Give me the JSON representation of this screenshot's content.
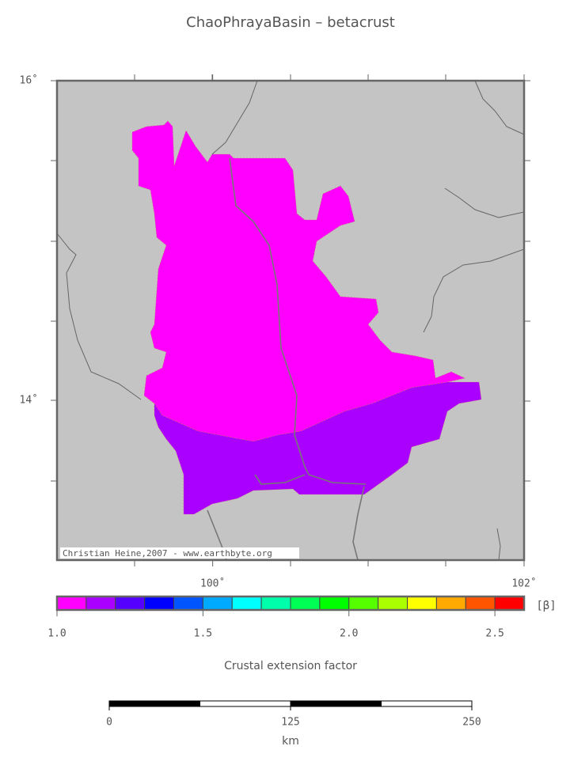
{
  "title": "ChaoPhrayaBasin – betacrust",
  "map": {
    "xlim": [
      99,
      102
    ],
    "ylim": [
      13,
      16
    ],
    "xticks": [
      {
        "value": 100,
        "label": "100˚"
      },
      {
        "value": 102,
        "label": "102˚"
      }
    ],
    "yticks": [
      {
        "value": 14,
        "label": "14˚"
      },
      {
        "value": 16,
        "label": "16˚"
      }
    ],
    "credit": "Christian Heine,2007 - www.earthbyte.org",
    "background": "#c4c4c4"
  },
  "colorbar": {
    "range": [
      1.0,
      2.6
    ],
    "colors": [
      "#ff00ff",
      "#aa00ff",
      "#5500ff",
      "#0000ff",
      "#0055ff",
      "#00aaff",
      "#00ffff",
      "#00ffaa",
      "#00ff55",
      "#00ff00",
      "#55ff00",
      "#aaff00",
      "#ffff00",
      "#ffaa00",
      "#ff5500",
      "#ff0000"
    ],
    "ticks": [
      {
        "value": 1,
        "label": "1.0"
      },
      1.5,
      {
        "value": 2,
        "label": "2.0"
      },
      2.5
    ],
    "unit": "[β]",
    "label": "Crustal extension factor"
  },
  "scalebar": {
    "range": [
      0,
      250
    ],
    "ticks": [
      0,
      125,
      250
    ],
    "unit": "km"
  }
}
